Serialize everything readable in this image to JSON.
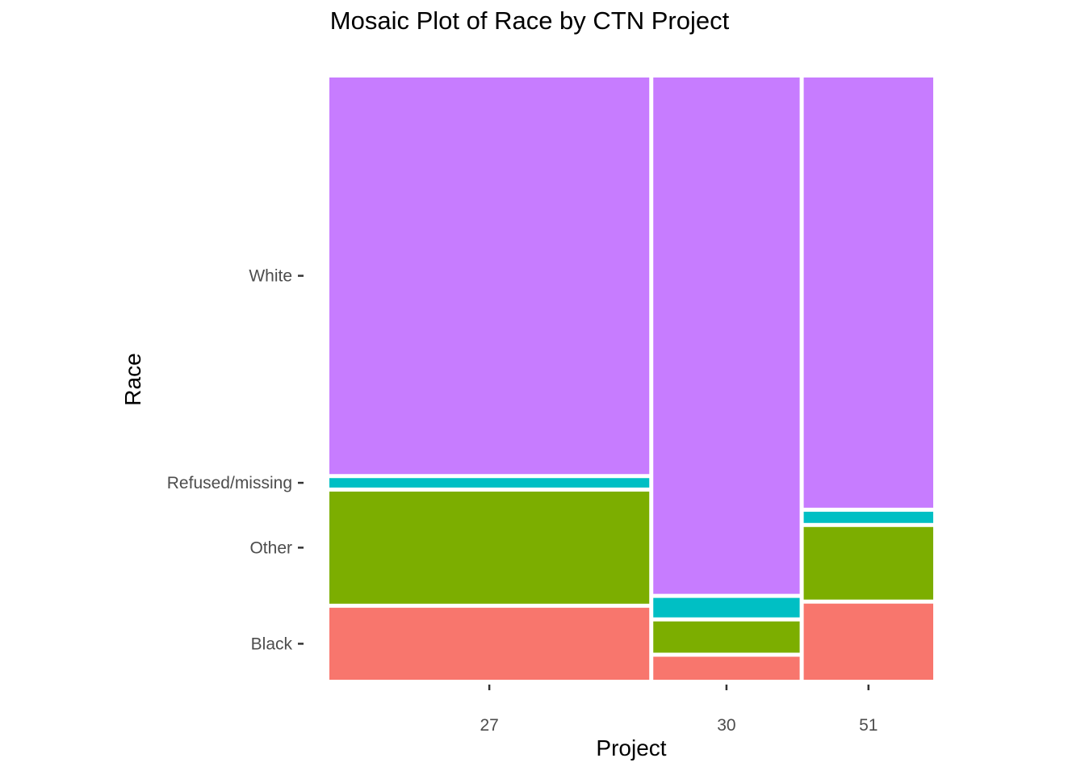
{
  "chart_data": {
    "type": "mosaic",
    "title": "Mosaic Plot of Race by CTN Project",
    "xlabel": "Project",
    "ylabel": "Race",
    "categories": [
      "27",
      "30",
      "51"
    ],
    "category_widths": [
      0.531,
      0.243,
      0.215
    ],
    "segments": [
      "Black",
      "Other",
      "Refused/missing",
      "White"
    ],
    "series": [
      {
        "name": "Black",
        "color": "#F8766D",
        "values": [
          0.122,
          0.039,
          0.129
        ]
      },
      {
        "name": "Other",
        "color": "#7CAE00",
        "values": [
          0.19,
          0.053,
          0.123
        ]
      },
      {
        "name": "Refused/missing",
        "color": "#00BFC4",
        "values": [
          0.016,
          0.033,
          0.019
        ]
      },
      {
        "name": "White",
        "color": "#C77CFF",
        "values": [
          0.672,
          0.875,
          0.729
        ]
      }
    ],
    "y_tick_labels": [
      "Black",
      "Other",
      "Refused/missing",
      "White"
    ],
    "grid": false,
    "legend": "none"
  }
}
